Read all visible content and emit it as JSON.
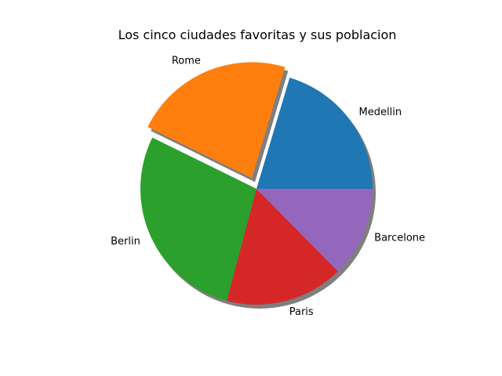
{
  "chart_data": {
    "type": "pie",
    "title": "Los cinco ciudades favoritas y sus poblacion",
    "labels": [
      "Medellin",
      "Rome",
      "Berlin",
      "Paris",
      "Barcelone"
    ],
    "values": [
      21,
      23,
      29,
      17,
      13
    ],
    "explode": [
      0,
      0.1,
      0,
      0,
      0
    ],
    "colors": [
      "#1f77b4",
      "#ff7f0e",
      "#2ca02c",
      "#d62728",
      "#9467bd"
    ],
    "shadow": true,
    "start_angle": 0,
    "legend": "none"
  }
}
